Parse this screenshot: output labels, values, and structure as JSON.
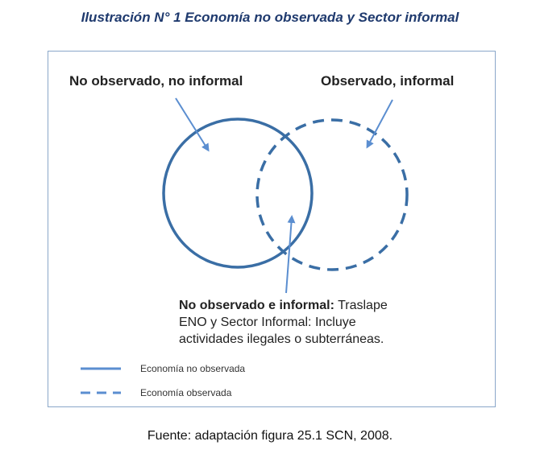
{
  "title": "Ilustración N° 1 Economía no observada y Sector informal",
  "labels": {
    "no_observado_no_informal": "No observado, no informal",
    "observado_informal": "Observado, informal",
    "overlap_bold": "No observado e informal:",
    "overlap_line1_rest": " Traslape",
    "overlap_line2": "ENO y Sector Informal: Incluye",
    "overlap_line3": "actividades ilegales o subterráneas."
  },
  "legend": {
    "solid_label": "Economía no observada",
    "dashed_label": "Economía observada"
  },
  "source": "Fuente: adaptación figura 25.1 SCN, 2008.",
  "colors": {
    "circle": "#3a6ea5",
    "arrow": "#5b8ed0",
    "title": "#1f3a6e"
  }
}
